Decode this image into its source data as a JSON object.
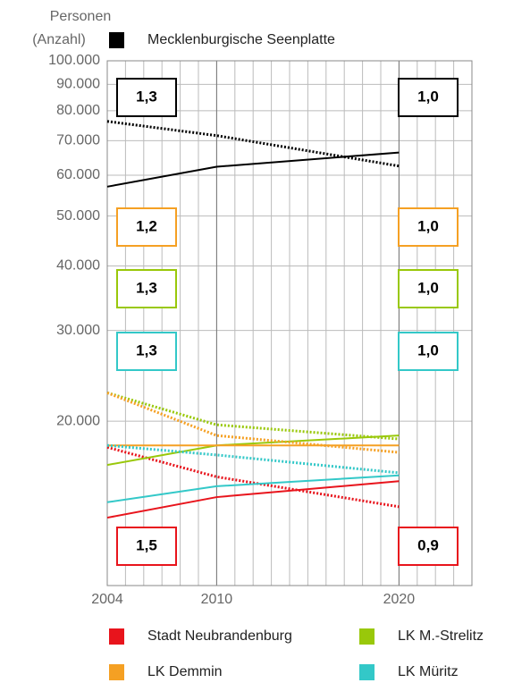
{
  "chart_data": {
    "type": "line",
    "log_y": true,
    "ylabel": [
      "Personen",
      "(Anzahl)"
    ],
    "x": [
      2004,
      2010,
      2020
    ],
    "xlim": [
      2004,
      2024
    ],
    "xticks": [
      2004,
      2010,
      2020
    ],
    "ylim": [
      9600,
      100000
    ],
    "yticks": [
      {
        "value": 100000,
        "label": "100.000"
      },
      {
        "value": 90000,
        "label": "90.000"
      },
      {
        "value": 80000,
        "label": "80.000"
      },
      {
        "value": 70000,
        "label": "70.000"
      },
      {
        "value": 60000,
        "label": "60.000"
      },
      {
        "value": 50000,
        "label": "50.000"
      },
      {
        "value": 40000,
        "label": "40.000"
      },
      {
        "value": 30000,
        "label": "30.000"
      },
      {
        "value": 20000,
        "label": "20.000"
      }
    ],
    "grid": true,
    "series": [
      {
        "name": "Mecklenburgische Seenplatte",
        "color": "#000000",
        "values": [
          57000,
          62300,
          66400
        ],
        "dotted_values": [
          76300,
          71600,
          62500
        ],
        "ratios": [
          1.3,
          1.0
        ],
        "ratio_labels": [
          "1,3",
          "1,0"
        ]
      },
      {
        "name": "Stadt Neubrandenburg",
        "color": "#e8141c",
        "values": [
          13000,
          14250,
          15300
        ],
        "dotted_values": [
          17800,
          15600,
          13650
        ],
        "ratios": [
          1.5,
          0.9
        ],
        "ratio_labels": [
          "1,5",
          "0,9"
        ]
      },
      {
        "name": "LK M.-Strelitz",
        "color": "#99c80a",
        "values": [
          16450,
          17950,
          18760
        ],
        "dotted_values": [
          22700,
          19680,
          18470
        ],
        "ratios": [
          1.3,
          1.0
        ],
        "ratio_labels": [
          "1,3",
          "1,0"
        ]
      },
      {
        "name": "LK Demmin",
        "color": "#f5a023",
        "values": [
          17950,
          17950,
          17950
        ],
        "dotted_values": [
          22700,
          18760,
          17400
        ],
        "ratios": [
          1.2,
          1.0
        ],
        "ratio_labels": [
          "1,2",
          "1,0"
        ]
      },
      {
        "name": "LK Müritz",
        "color": "#33c8c8",
        "values": [
          13930,
          14960,
          15700
        ],
        "dotted_values": [
          17950,
          17200,
          15880
        ],
        "ratios": [
          1.3,
          1.0
        ],
        "ratio_labels": [
          "1,3",
          "1,0"
        ]
      }
    ]
  }
}
